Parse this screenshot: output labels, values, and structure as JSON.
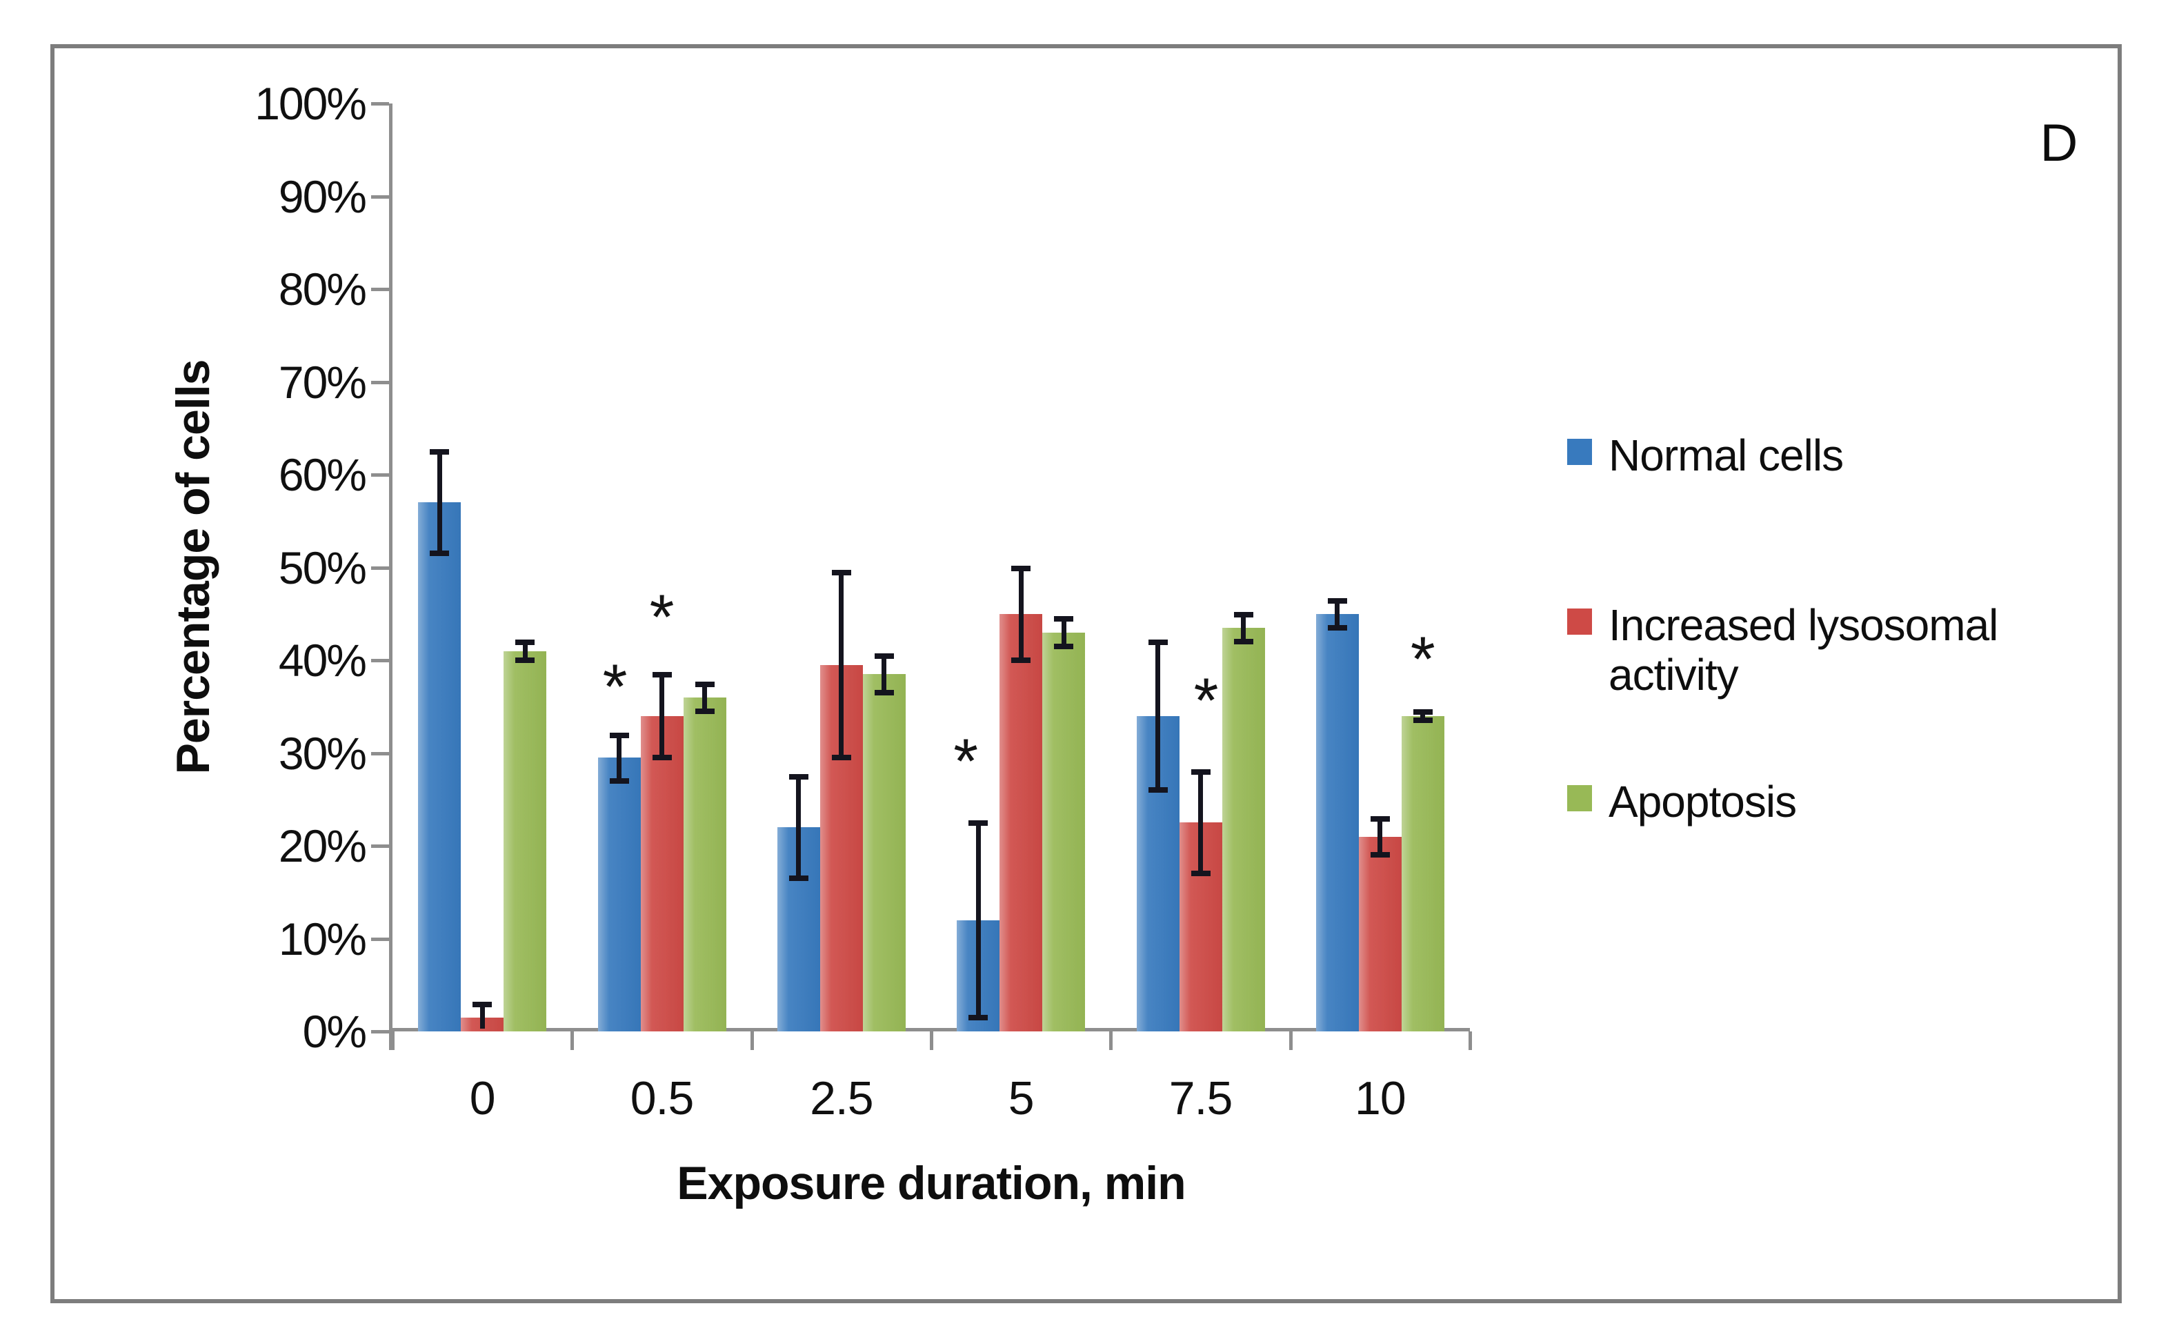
{
  "panel_label": "D",
  "chart_data": {
    "type": "bar",
    "title": "",
    "xlabel": "Exposure duration, min",
    "ylabel": "Percentage of cells",
    "categories": [
      "0",
      "0.5",
      "2.5",
      "5",
      "7.5",
      "10"
    ],
    "series": [
      {
        "name": "Normal cells",
        "color": "#387ABE",
        "values": [
          57,
          29.5,
          22,
          12,
          34,
          45
        ],
        "errors": [
          5.5,
          2.5,
          5.5,
          10.5,
          8,
          1.5
        ]
      },
      {
        "name": "Increased lysosomal activity",
        "color": "#CE4A46",
        "values": [
          1.5,
          34,
          39.5,
          45,
          22.5,
          21
        ],
        "errors": [
          1.5,
          4.5,
          10,
          5,
          5.5,
          2
        ]
      },
      {
        "name": "Apoptosis",
        "color": "#98B956",
        "values": [
          41,
          36,
          38.5,
          43,
          43.5,
          34
        ],
        "errors": [
          1,
          1.5,
          2,
          1.5,
          1.5,
          0.5
        ]
      }
    ],
    "y_ticks": [
      "100%",
      "90%",
      "80%",
      "70%",
      "60%",
      "50%",
      "40%",
      "30%",
      "20%",
      "10%",
      "0%"
    ],
    "ylim": [
      0,
      100
    ],
    "grid": false,
    "legend_position": "right",
    "annotations": [
      {
        "symbol": "*",
        "category": "0.5",
        "series": "Normal cells",
        "y": 38,
        "dx": -6
      },
      {
        "symbol": "*",
        "category": "0.5",
        "series": "Increased lysosomal activity",
        "y": 45.5,
        "dx": 0
      },
      {
        "symbol": "*",
        "category": "5",
        "series": "Normal cells",
        "y": 30,
        "dx": -18
      },
      {
        "symbol": "*",
        "category": "7.5",
        "series": "Increased lysosomal activity",
        "y": 36.5,
        "dx": 8
      },
      {
        "symbol": "*",
        "category": "10",
        "series": "Apoptosis",
        "y": 41,
        "dx": 0
      }
    ],
    "error_bar_color": "#14141E",
    "axis_color": "#8E8E8E"
  }
}
